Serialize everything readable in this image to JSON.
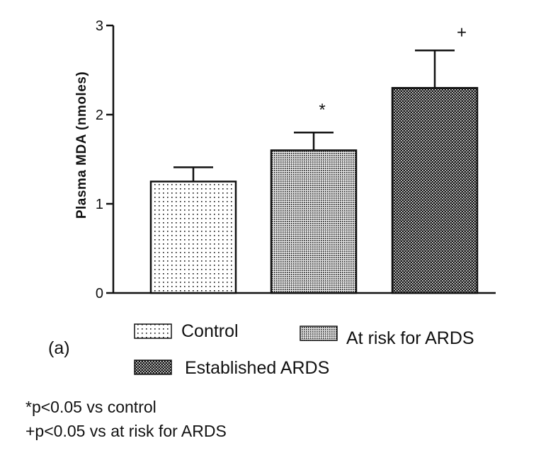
{
  "chart_data": {
    "type": "bar",
    "title": "",
    "xlabel": "",
    "ylabel": "Plasma MDA (nmoles)",
    "ylim": [
      0,
      3
    ],
    "yticks": [
      "0",
      "1",
      "2",
      "3"
    ],
    "grid": false,
    "categories": [
      "Control",
      "At risk for ARDS",
      "Established ARDS"
    ],
    "values": [
      1.25,
      1.6,
      2.3
    ],
    "error_upper": [
      0.16,
      0.2,
      0.42
    ],
    "significance_marks": [
      "",
      "*",
      "+"
    ],
    "bar_patterns": [
      "sparse-dots",
      "fine-dots",
      "dense-checker"
    ],
    "legend": {
      "placement": "bottom",
      "entries": [
        "Control",
        "At risk for ARDS",
        "Established ARDS"
      ]
    },
    "panel_label": "(a)",
    "footnotes": [
      "*p<0.05 vs control",
      "+p<0.05 vs at risk for ARDS"
    ]
  },
  "colors": {
    "ink": "#111111",
    "background": "#ffffff"
  }
}
